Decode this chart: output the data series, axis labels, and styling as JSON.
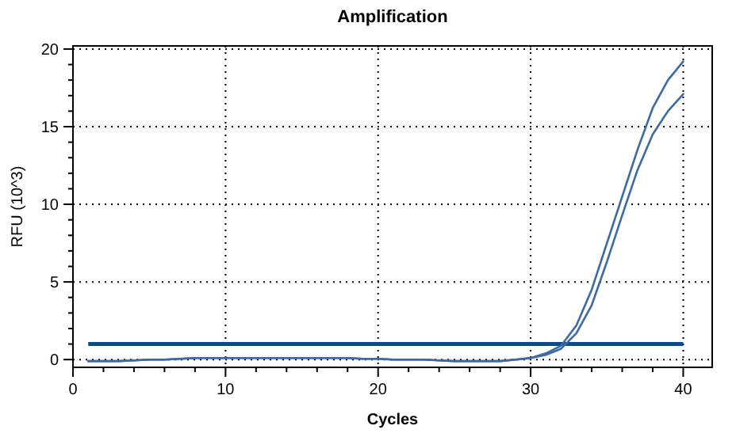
{
  "chart_data": {
    "type": "line",
    "title": "Amplification",
    "xlabel": "Cycles",
    "ylabel": "RFU (10^3)",
    "xlim": [
      0,
      41.9
    ],
    "ylim": [
      -0.5,
      20.2
    ],
    "xticks": [
      0,
      {
        "value": 2,
        "label": null
      },
      {
        "value": 4,
        "label": null
      },
      {
        "value": 6,
        "label": null
      },
      {
        "value": 8,
        "label": null
      },
      10,
      {
        "value": 12,
        "label": null
      },
      {
        "value": 14,
        "label": null
      },
      {
        "value": 16,
        "label": null
      },
      {
        "value": 18,
        "label": null
      },
      20,
      {
        "value": 22,
        "label": null
      },
      {
        "value": 24,
        "label": null
      },
      {
        "value": 26,
        "label": null
      },
      {
        "value": 28,
        "label": null
      },
      30,
      {
        "value": 32,
        "label": null
      },
      {
        "value": 34,
        "label": null
      },
      {
        "value": 36,
        "label": null
      },
      {
        "value": 38,
        "label": null
      },
      40
    ],
    "yticks": [
      0,
      {
        "value": 1,
        "label": null
      },
      {
        "value": 2,
        "label": null
      },
      {
        "value": 3,
        "label": null
      },
      {
        "value": 4,
        "label": null
      },
      5,
      {
        "value": 6,
        "label": null
      },
      {
        "value": 7,
        "label": null
      },
      {
        "value": 8,
        "label": null
      },
      {
        "value": 9,
        "label": null
      },
      10,
      {
        "value": 11,
        "label": null
      },
      {
        "value": 12,
        "label": null
      },
      {
        "value": 13,
        "label": null
      },
      {
        "value": 14,
        "label": null
      },
      15,
      {
        "value": 16,
        "label": null
      },
      {
        "value": 17,
        "label": null
      },
      {
        "value": 18,
        "label": null
      },
      {
        "value": 19,
        "label": null
      },
      20
    ],
    "grid": true,
    "line_style": "solid",
    "marker": "none",
    "x": [
      1,
      2,
      3,
      4,
      5,
      6,
      7,
      8,
      9,
      10,
      11,
      12,
      13,
      14,
      15,
      16,
      17,
      18,
      19,
      20,
      21,
      22,
      23,
      24,
      25,
      26,
      27,
      28,
      29,
      30,
      31,
      32,
      33,
      34,
      35,
      36,
      37,
      38,
      39,
      40
    ],
    "series": [
      {
        "color": "#3d6aa3",
        "values": [
          -0.1,
          -0.1,
          -0.1,
          -0.05,
          0,
          0,
          0.05,
          0.1,
          0.1,
          0.1,
          0.1,
          0.1,
          0.1,
          0.1,
          0.1,
          0.1,
          0.1,
          0.1,
          0.05,
          0.05,
          0,
          0,
          0,
          -0.05,
          -0.1,
          -0.1,
          -0.1,
          -0.1,
          0,
          0.1,
          0.4,
          0.9,
          2.2,
          4.5,
          7.5,
          10.5,
          13.5,
          16.2,
          18,
          19.2
        ]
      },
      {
        "color": "#3d6aa3",
        "values": [
          -0.1,
          -0.1,
          -0.1,
          -0.05,
          0,
          0,
          0.05,
          0.1,
          0.1,
          0.1,
          0.1,
          0.1,
          0.1,
          0.1,
          0.1,
          0.1,
          0.1,
          0.1,
          0.05,
          0.05,
          0,
          0,
          0,
          -0.05,
          -0.1,
          -0.1,
          -0.1,
          -0.1,
          0,
          0.1,
          0.3,
          0.7,
          1.7,
          3.5,
          6.3,
          9.3,
          12.2,
          14.5,
          16,
          17.1
        ]
      }
    ],
    "ref_lines": [
      {
        "axis": "y",
        "value": 1,
        "color": "#0d4a86"
      }
    ]
  }
}
